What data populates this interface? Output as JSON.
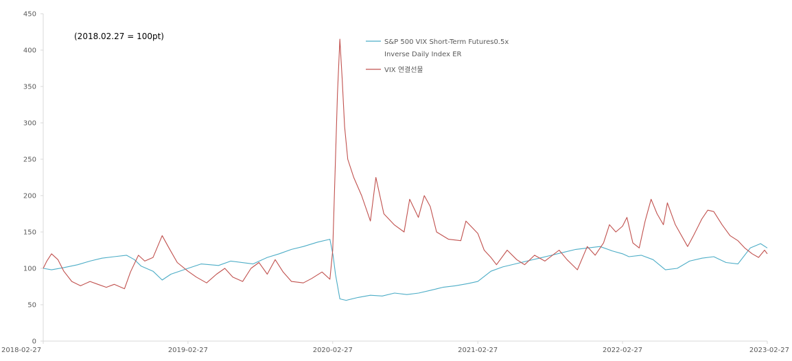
{
  "chart_data": {
    "type": "line",
    "title": "",
    "annotation": "(2018.02.27 = 100pt)",
    "xlabel": "",
    "ylabel": "",
    "ylim": [
      0,
      450
    ],
    "yticks": [
      0,
      50,
      100,
      150,
      200,
      250,
      300,
      350,
      400,
      450
    ],
    "xlim": [
      "2018-02-27",
      "2023-02-27"
    ],
    "xticks": [
      "2018-02-27",
      "2019-02-27",
      "2020-02-27",
      "2021-02-27",
      "2022-02-27",
      "2023-02-27"
    ],
    "grid": false,
    "legend_position": "top-center",
    "series": [
      {
        "name": "S&P 500 VIX Short-Term Futures0.5x",
        "name_line2": "Inverse Daily Index ER",
        "color": "#4bacc6",
        "points": [
          [
            "2018-02-27",
            100
          ],
          [
            "2018-03-20",
            98
          ],
          [
            "2018-04-20",
            101
          ],
          [
            "2018-05-25",
            105
          ],
          [
            "2018-06-25",
            110
          ],
          [
            "2018-07-25",
            114
          ],
          [
            "2018-08-25",
            116
          ],
          [
            "2018-09-25",
            118
          ],
          [
            "2018-10-15",
            112
          ],
          [
            "2018-11-01",
            103
          ],
          [
            "2018-12-01",
            96
          ],
          [
            "2018-12-24",
            84
          ],
          [
            "2019-01-15",
            92
          ],
          [
            "2019-02-27",
            100
          ],
          [
            "2019-04-01",
            106
          ],
          [
            "2019-05-15",
            104
          ],
          [
            "2019-06-15",
            110
          ],
          [
            "2019-08-10",
            106
          ],
          [
            "2019-09-15",
            115
          ],
          [
            "2019-10-15",
            120
          ],
          [
            "2019-11-15",
            126
          ],
          [
            "2019-12-15",
            130
          ],
          [
            "2020-01-20",
            136
          ],
          [
            "2020-02-20",
            140
          ],
          [
            "2020-02-28",
            118
          ],
          [
            "2020-03-05",
            92
          ],
          [
            "2020-03-16",
            58
          ],
          [
            "2020-04-01",
            56
          ],
          [
            "2020-05-01",
            60
          ],
          [
            "2020-06-01",
            63
          ],
          [
            "2020-07-01",
            62
          ],
          [
            "2020-08-01",
            66
          ],
          [
            "2020-09-01",
            64
          ],
          [
            "2020-10-01",
            66
          ],
          [
            "2020-11-01",
            70
          ],
          [
            "2020-12-01",
            74
          ],
          [
            "2021-01-01",
            76
          ],
          [
            "2021-02-01",
            79
          ],
          [
            "2021-02-27",
            82
          ],
          [
            "2021-04-01",
            96
          ],
          [
            "2021-05-01",
            102
          ],
          [
            "2021-06-01",
            106
          ],
          [
            "2021-07-01",
            110
          ],
          [
            "2021-08-01",
            114
          ],
          [
            "2021-09-01",
            118
          ],
          [
            "2021-10-01",
            122
          ],
          [
            "2021-11-01",
            126
          ],
          [
            "2021-12-01",
            128
          ],
          [
            "2022-01-01",
            130
          ],
          [
            "2022-02-01",
            124
          ],
          [
            "2022-02-27",
            120
          ],
          [
            "2022-03-15",
            116
          ],
          [
            "2022-04-15",
            118
          ],
          [
            "2022-05-15",
            112
          ],
          [
            "2022-06-15",
            98
          ],
          [
            "2022-07-15",
            100
          ],
          [
            "2022-08-15",
            110
          ],
          [
            "2022-09-15",
            114
          ],
          [
            "2022-10-15",
            116
          ],
          [
            "2022-11-15",
            108
          ],
          [
            "2022-12-15",
            106
          ],
          [
            "2023-01-15",
            128
          ],
          [
            "2023-02-10",
            134
          ],
          [
            "2023-02-27",
            128
          ]
        ]
      },
      {
        "name": "VIX 연결선물",
        "color": "#c0504d",
        "points": [
          [
            "2018-02-27",
            100
          ],
          [
            "2018-03-08",
            110
          ],
          [
            "2018-03-20",
            120
          ],
          [
            "2018-04-05",
            112
          ],
          [
            "2018-04-20",
            96
          ],
          [
            "2018-05-10",
            82
          ],
          [
            "2018-06-01",
            76
          ],
          [
            "2018-06-25",
            82
          ],
          [
            "2018-07-15",
            78
          ],
          [
            "2018-08-05",
            74
          ],
          [
            "2018-08-25",
            78
          ],
          [
            "2018-09-20",
            72
          ],
          [
            "2018-10-05",
            95
          ],
          [
            "2018-10-25",
            118
          ],
          [
            "2018-11-10",
            110
          ],
          [
            "2018-12-01",
            115
          ],
          [
            "2018-12-24",
            145
          ],
          [
            "2019-01-10",
            128
          ],
          [
            "2019-01-31",
            108
          ],
          [
            "2019-02-27",
            96
          ],
          [
            "2019-03-20",
            88
          ],
          [
            "2019-04-15",
            80
          ],
          [
            "2019-05-10",
            92
          ],
          [
            "2019-05-31",
            100
          ],
          [
            "2019-06-20",
            88
          ],
          [
            "2019-07-15",
            82
          ],
          [
            "2019-08-05",
            100
          ],
          [
            "2019-08-25",
            108
          ],
          [
            "2019-09-15",
            92
          ],
          [
            "2019-10-05",
            112
          ],
          [
            "2019-10-25",
            95
          ],
          [
            "2019-11-15",
            82
          ],
          [
            "2019-12-15",
            80
          ],
          [
            "2020-01-05",
            86
          ],
          [
            "2020-01-31",
            95
          ],
          [
            "2020-02-20",
            85
          ],
          [
            "2020-02-27",
            125
          ],
          [
            "2020-03-05",
            250
          ],
          [
            "2020-03-10",
            340
          ],
          [
            "2020-03-16",
            415
          ],
          [
            "2020-03-22",
            360
          ],
          [
            "2020-03-28",
            295
          ],
          [
            "2020-04-05",
            250
          ],
          [
            "2020-04-20",
            225
          ],
          [
            "2020-05-10",
            200
          ],
          [
            "2020-06-01",
            165
          ],
          [
            "2020-06-15",
            225
          ],
          [
            "2020-07-05",
            175
          ],
          [
            "2020-07-31",
            160
          ],
          [
            "2020-08-25",
            150
          ],
          [
            "2020-09-08",
            195
          ],
          [
            "2020-09-30",
            170
          ],
          [
            "2020-10-15",
            200
          ],
          [
            "2020-10-30",
            185
          ],
          [
            "2020-11-15",
            150
          ],
          [
            "2020-12-15",
            140
          ],
          [
            "2021-01-15",
            138
          ],
          [
            "2021-01-28",
            165
          ],
          [
            "2021-02-27",
            148
          ],
          [
            "2021-03-15",
            125
          ],
          [
            "2021-04-01",
            115
          ],
          [
            "2021-04-15",
            105
          ],
          [
            "2021-05-12",
            125
          ],
          [
            "2021-06-05",
            112
          ],
          [
            "2021-06-25",
            105
          ],
          [
            "2021-07-20",
            118
          ],
          [
            "2021-08-15",
            110
          ],
          [
            "2021-09-20",
            125
          ],
          [
            "2021-10-10",
            112
          ],
          [
            "2021-11-05",
            98
          ],
          [
            "2021-11-30",
            130
          ],
          [
            "2021-12-20",
            118
          ],
          [
            "2022-01-10",
            135
          ],
          [
            "2022-01-25",
            160
          ],
          [
            "2022-02-10",
            150
          ],
          [
            "2022-02-27",
            158
          ],
          [
            "2022-03-10",
            170
          ],
          [
            "2022-03-25",
            135
          ],
          [
            "2022-04-10",
            128
          ],
          [
            "2022-04-25",
            165
          ],
          [
            "2022-05-10",
            195
          ],
          [
            "2022-05-25",
            175
          ],
          [
            "2022-06-10",
            160
          ],
          [
            "2022-06-20",
            190
          ],
          [
            "2022-07-10",
            160
          ],
          [
            "2022-08-10",
            130
          ],
          [
            "2022-08-25",
            145
          ],
          [
            "2022-09-15",
            168
          ],
          [
            "2022-09-30",
            180
          ],
          [
            "2022-10-15",
            178
          ],
          [
            "2022-11-05",
            160
          ],
          [
            "2022-11-25",
            145
          ],
          [
            "2022-12-15",
            138
          ],
          [
            "2023-01-01",
            128
          ],
          [
            "2023-01-20",
            120
          ],
          [
            "2023-02-05",
            115
          ],
          [
            "2023-02-20",
            125
          ],
          [
            "2023-02-27",
            120
          ]
        ]
      }
    ]
  }
}
